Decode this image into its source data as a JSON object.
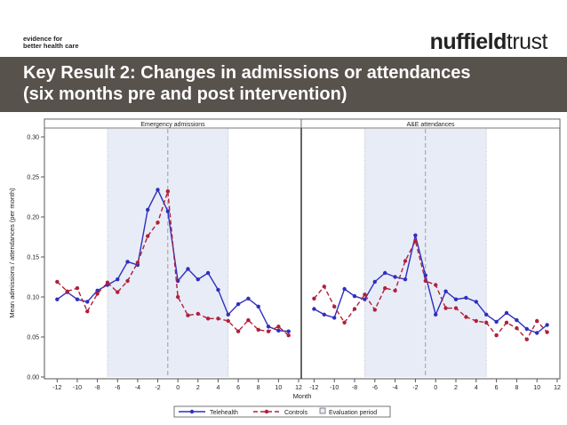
{
  "header": {
    "tagline_line1": "evidence for",
    "tagline_line2": "better health care",
    "brand_part1": "nuffield",
    "brand_part2": "trust"
  },
  "slide": {
    "title_line1": "Key Result 2: Changes in admissions or attendances",
    "title_line2": "(six months pre and post intervention)"
  },
  "colors": {
    "banner": "#58524c",
    "telehealth": "#2f2fbf",
    "controls": "#b0203a",
    "evaluation_band": "#e8ecf6"
  },
  "chart_data": {
    "type": "line",
    "ylabel": "Mean admissions / attendances (per month)",
    "xlabel": "Month",
    "xlim": [
      -13,
      12
    ],
    "ylim": [
      0,
      0.31
    ],
    "x_ticks": [
      "-12",
      "-10",
      "-8",
      "-6",
      "-4",
      "-2",
      "0",
      "2",
      "4",
      "6",
      "8",
      "10",
      "12"
    ],
    "y_ticks": [
      "0.00",
      "0.05",
      "0.10",
      "0.15",
      "0.20",
      "0.25",
      "0.30"
    ],
    "evaluation_period": [
      -7,
      5
    ],
    "intervention_line": -1,
    "legend": [
      "Telehealth",
      "Controls",
      "Evaluation period"
    ],
    "panels": [
      {
        "title": "Emergency admissions",
        "x": [
          -12,
          -11,
          -10,
          -9,
          -8,
          -7,
          -6,
          -5,
          -4,
          -3,
          -2,
          -1,
          0,
          1,
          2,
          3,
          4,
          5,
          6,
          7,
          8,
          9,
          10,
          11
        ],
        "series": [
          {
            "name": "Telehealth",
            "values": [
              0.097,
              0.106,
              0.097,
              0.094,
              0.108,
              0.115,
              0.122,
              0.144,
              0.14,
              0.209,
              0.234,
              0.207,
              0.12,
              0.135,
              0.122,
              0.13,
              0.109,
              0.078,
              0.091,
              0.098,
              0.088,
              0.063,
              0.058,
              0.057
            ]
          },
          {
            "name": "Controls",
            "values": [
              0.119,
              0.107,
              0.111,
              0.082,
              0.104,
              0.118,
              0.106,
              0.12,
              0.143,
              0.176,
              0.193,
              0.232,
              0.1,
              0.077,
              0.079,
              0.073,
              0.073,
              0.07,
              0.057,
              0.071,
              0.059,
              0.057,
              0.063,
              0.052
            ]
          }
        ]
      },
      {
        "title": "A&E attendances",
        "x": [
          -12,
          -11,
          -10,
          -9,
          -8,
          -7,
          -6,
          -5,
          -4,
          -3,
          -2,
          -1,
          0,
          1,
          2,
          3,
          4,
          5,
          6,
          7,
          8,
          9,
          10,
          11
        ],
        "series": [
          {
            "name": "Telehealth",
            "values": [
              0.085,
              0.078,
              0.074,
              0.11,
              0.101,
              0.097,
              0.119,
              0.13,
              0.125,
              0.122,
              0.177,
              0.127,
              0.078,
              0.107,
              0.097,
              0.099,
              0.094,
              0.078,
              0.069,
              0.08,
              0.071,
              0.06,
              0.055,
              0.065
            ]
          },
          {
            "name": "Controls",
            "values": [
              0.098,
              0.113,
              0.088,
              0.068,
              0.085,
              0.103,
              0.084,
              0.111,
              0.108,
              0.145,
              0.17,
              0.12,
              0.115,
              0.086,
              0.086,
              0.075,
              0.07,
              0.068,
              0.052,
              0.068,
              0.061,
              0.047,
              0.07,
              0.056
            ]
          }
        ]
      }
    ]
  }
}
